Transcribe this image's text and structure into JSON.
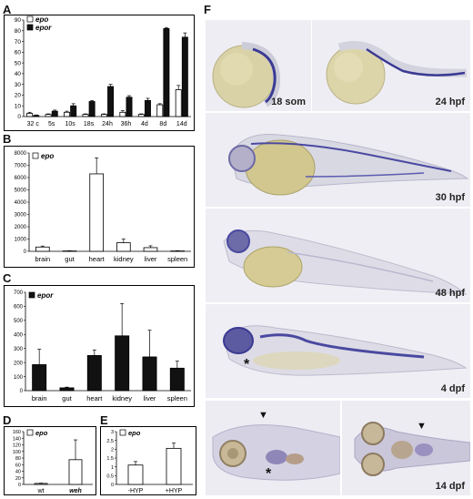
{
  "panels": {
    "A": "A",
    "B": "B",
    "C": "C",
    "D": "D",
    "E": "E",
    "F": "F"
  },
  "colors": {
    "epo": "#ffffff",
    "epor": "#111111",
    "stain": "#3b3a93",
    "yolk": "#d6cfa2",
    "background": "#eeedf4"
  },
  "chart_data": [
    {
      "panel": "A",
      "type": "bar",
      "categories": [
        "32 c",
        "5s",
        "10s",
        "18s",
        "24h",
        "36h",
        "4d",
        "8d",
        "14d"
      ],
      "series": [
        {
          "name": "epo",
          "values": [
            3,
            2,
            4,
            2,
            2,
            4,
            2,
            11,
            25
          ],
          "errors": [
            1,
            0.5,
            1,
            0.5,
            0.5,
            1.5,
            0.5,
            1,
            4
          ]
        },
        {
          "name": "epor",
          "values": [
            1,
            5,
            10,
            14,
            28,
            18,
            15,
            82,
            74
          ],
          "errors": [
            0.5,
            1,
            2,
            1,
            2,
            1.5,
            2,
            1,
            4
          ]
        }
      ],
      "ylim": [
        0,
        90
      ],
      "yticks": [
        "0",
        "10",
        "20",
        "30",
        "40",
        "50",
        "60",
        "70",
        "80",
        "90"
      ],
      "legend": "top-left"
    },
    {
      "panel": "B",
      "type": "bar",
      "categories": [
        "brain",
        "gut",
        "heart",
        "kidney",
        "liver",
        "spleen"
      ],
      "series": [
        {
          "name": "epo",
          "values": [
            350,
            30,
            6300,
            700,
            300,
            30
          ],
          "errors": [
            80,
            20,
            1300,
            300,
            150,
            20
          ]
        }
      ],
      "ylim": [
        0,
        8000
      ],
      "yticks": [
        "0",
        "1000",
        "2000",
        "3000",
        "4000",
        "5000",
        "6000",
        "7000",
        "8000"
      ],
      "legend": "top-left"
    },
    {
      "panel": "C",
      "type": "bar",
      "categories": [
        "brain",
        "gut",
        "heart",
        "kidney",
        "liver",
        "spleen"
      ],
      "series": [
        {
          "name": "epor",
          "values": [
            185,
            20,
            250,
            390,
            240,
            160
          ],
          "errors": [
            110,
            5,
            40,
            230,
            190,
            50
          ]
        }
      ],
      "ylim": [
        0,
        700
      ],
      "yticks": [
        "0",
        "100",
        "200",
        "300",
        "400",
        "500",
        "600",
        "700"
      ],
      "legend": "top-left"
    },
    {
      "panel": "D",
      "type": "bar",
      "categories": [
        "wt",
        "weh"
      ],
      "series": [
        {
          "name": "epo",
          "values": [
            3,
            75
          ],
          "errors": [
            1,
            60
          ]
        }
      ],
      "ylim": [
        0,
        160
      ],
      "yticks": [
        "0",
        "20",
        "40",
        "60",
        "80",
        "100",
        "120",
        "140",
        "160"
      ],
      "legend": "top-left"
    },
    {
      "panel": "E",
      "type": "bar",
      "categories": [
        "-HYP",
        "+HYP"
      ],
      "series": [
        {
          "name": "epo",
          "values": [
            1.1,
            2.05
          ],
          "errors": [
            0.2,
            0.3
          ]
        }
      ],
      "ylim": [
        0,
        3
      ],
      "yticks": [
        "0",
        "0.5",
        "1",
        "1.5",
        "2",
        "2.5",
        "3"
      ],
      "legend": "top-left"
    }
  ],
  "photos": {
    "stages": [
      "18 som",
      "24 hpf",
      "30 hpf",
      "48 hpf",
      "4 dpf",
      "14 dpf"
    ],
    "asterisk": "*",
    "arrowhead": "▼"
  }
}
